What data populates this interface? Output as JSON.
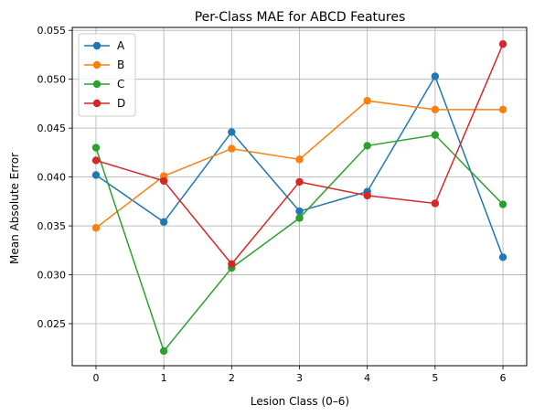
{
  "chart_data": {
    "type": "line",
    "title": "Per-Class MAE for ABCD Features",
    "xlabel": "Lesion Class (0–6)",
    "ylabel": "Mean Absolute Error",
    "x": [
      0,
      1,
      2,
      3,
      4,
      5,
      6
    ],
    "x_ticks": [
      "0",
      "1",
      "2",
      "3",
      "4",
      "5",
      "6"
    ],
    "xlim": [
      -0.35,
      6.35
    ],
    "ylim": [
      0.0207,
      0.0553
    ],
    "y_ticks": [
      "0.025",
      "0.030",
      "0.035",
      "0.040",
      "0.045",
      "0.050",
      "0.055"
    ],
    "y_tick_values": [
      0.025,
      0.03,
      0.035,
      0.04,
      0.045,
      0.05,
      0.055
    ],
    "grid": true,
    "legend_position": "top-left",
    "marker": "circle",
    "series": [
      {
        "name": "A",
        "color": "#1f77b4",
        "values": [
          0.0402,
          0.0354,
          0.0446,
          0.0365,
          0.0385,
          0.0503,
          0.0318
        ]
      },
      {
        "name": "B",
        "color": "#ff7f0e",
        "values": [
          0.0348,
          0.0401,
          0.0429,
          0.0418,
          0.0478,
          0.0469,
          0.0469
        ]
      },
      {
        "name": "C",
        "color": "#2ca02c",
        "values": [
          0.043,
          0.0222,
          0.0307,
          0.0358,
          0.0432,
          0.0443,
          0.0372
        ]
      },
      {
        "name": "D",
        "color": "#d62728",
        "values": [
          0.0417,
          0.0396,
          0.0311,
          0.0395,
          0.0381,
          0.0373,
          0.0536
        ]
      }
    ]
  }
}
